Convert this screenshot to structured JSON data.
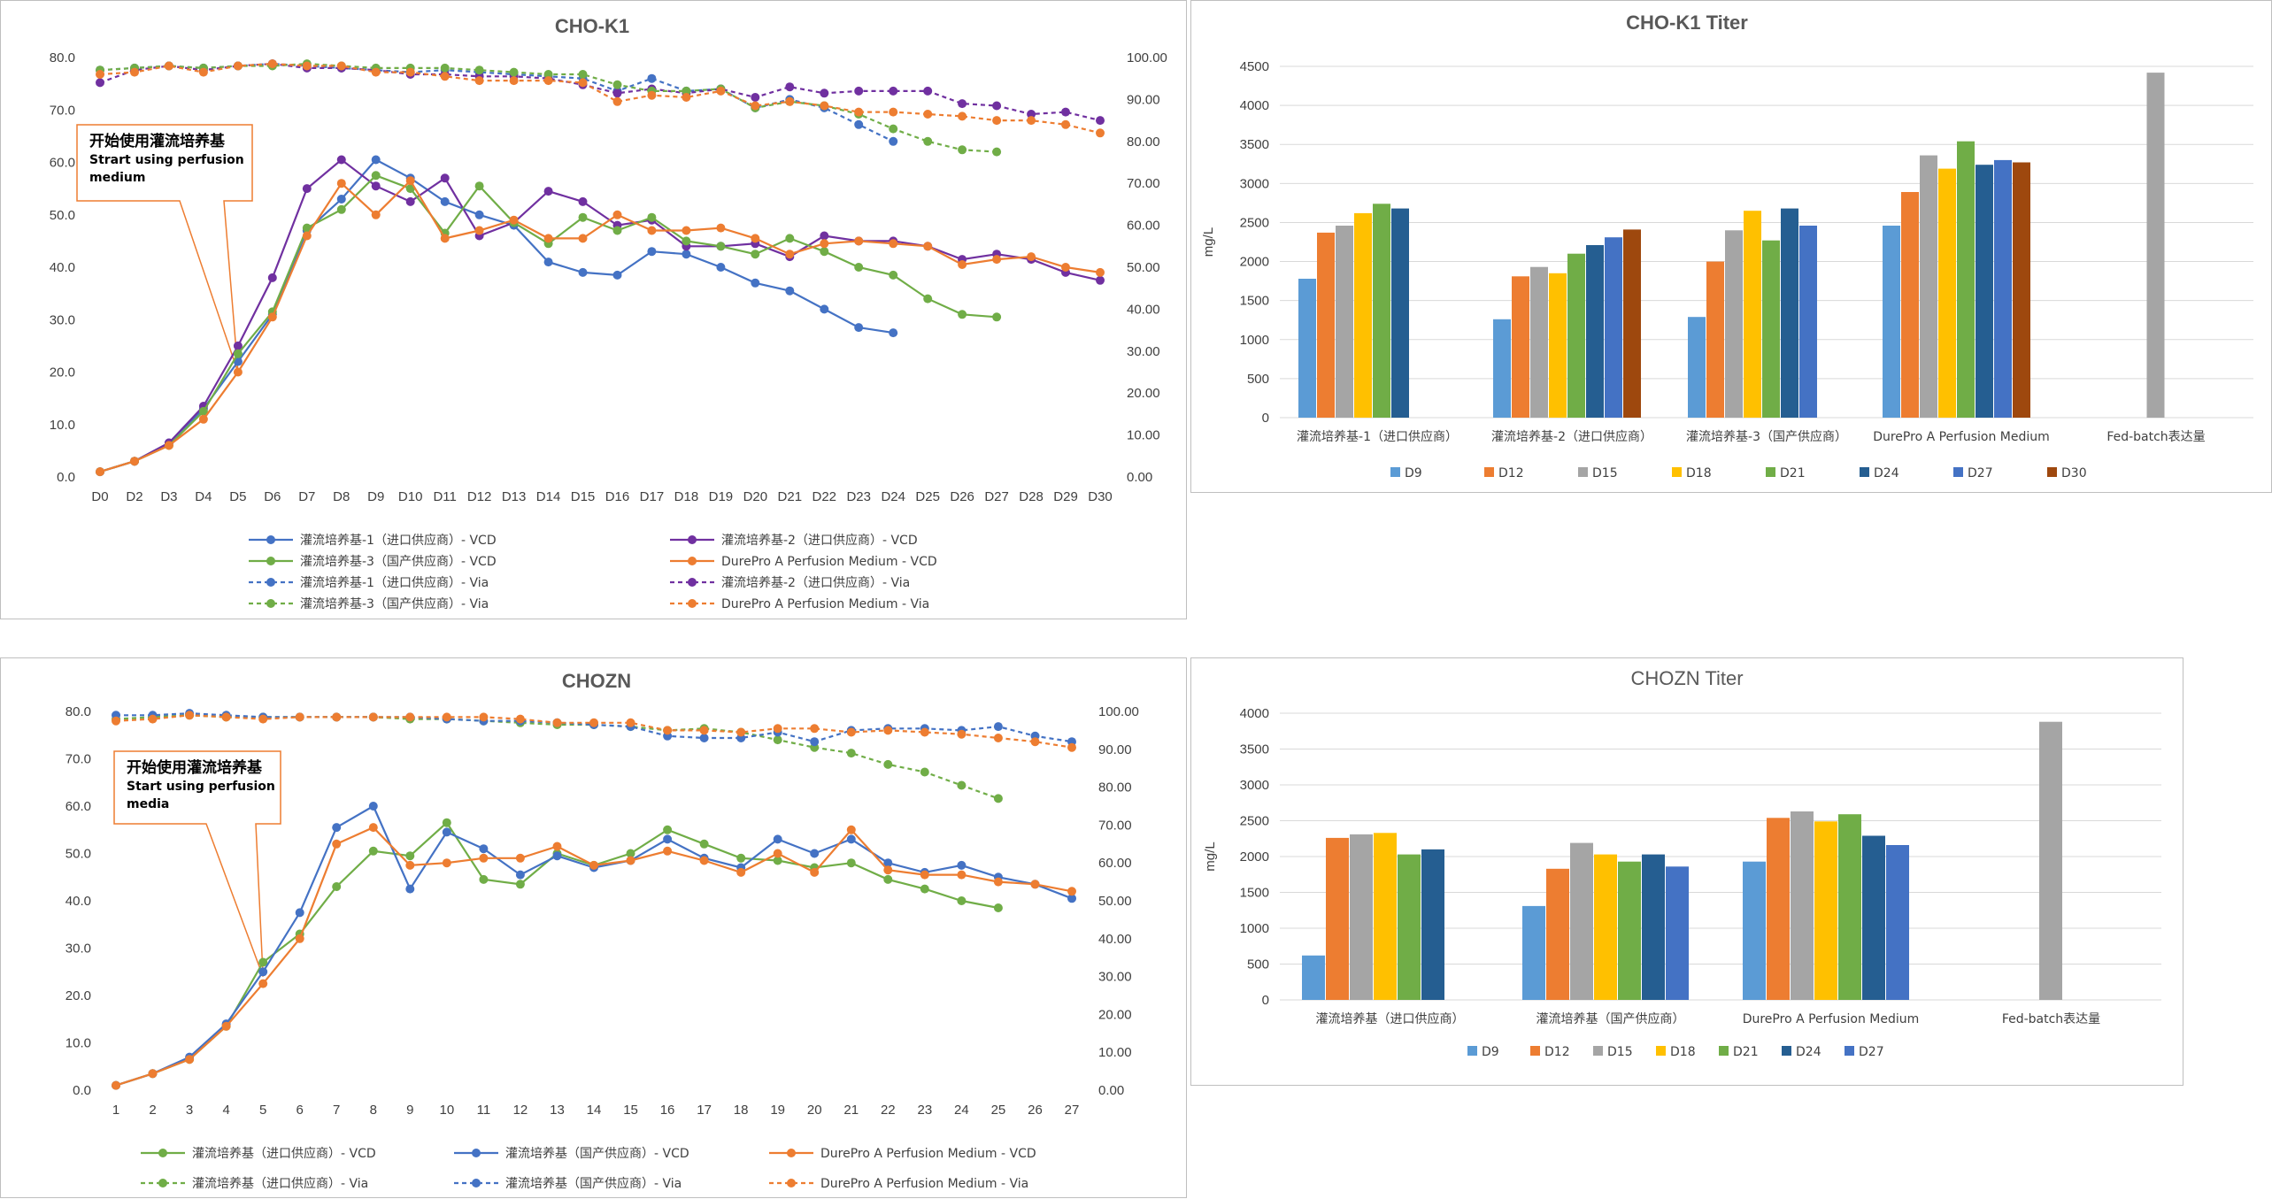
{
  "chart_data": [
    {
      "type": "line",
      "title": "CHO-K1",
      "x": [
        "D0",
        "D2",
        "D3",
        "D4",
        "D5",
        "D6",
        "D7",
        "D8",
        "D9",
        "D10",
        "D11",
        "D12",
        "D13",
        "D14",
        "D15",
        "D16",
        "D17",
        "D18",
        "D19",
        "D20",
        "D21",
        "D22",
        "D23",
        "D24",
        "D25",
        "D26",
        "D27",
        "D28",
        "D29",
        "D30"
      ],
      "ylim": [
        0,
        80
      ],
      "y_ticks": [
        "0.0",
        "10.0",
        "20.0",
        "30.0",
        "40.0",
        "50.0",
        "60.0",
        "70.0",
        "80.0"
      ],
      "y2lim": [
        0,
        100
      ],
      "y2_ticks": [
        "0.00",
        "10.00",
        "20.00",
        "30.00",
        "40.00",
        "50.00",
        "60.00",
        "70.00",
        "80.00",
        "90.00",
        "100.00"
      ],
      "annotation": [
        "开始使用灌流培养基",
        "Strart using perfusion",
        "medium"
      ],
      "annotation_x": "D5",
      "series": [
        {
          "name": "灌流培养基-1（进口供应商）- VCD",
          "color": "#4472c4",
          "axis": "left",
          "dashed": false,
          "values": [
            1.0,
            3.0,
            6.5,
            13.0,
            22.0,
            31.0,
            47.0,
            53.0,
            60.5,
            57.0,
            52.5,
            50.0,
            48.0,
            41.0,
            39.0,
            38.5,
            43.0,
            42.5,
            40.0,
            37.0,
            35.5,
            32.0,
            28.5,
            27.5,
            null,
            null,
            null,
            null,
            null,
            null
          ]
        },
        {
          "name": "灌流培养基-2（进口供应商）- VCD",
          "color": "#7030a0",
          "axis": "left",
          "dashed": false,
          "values": [
            1.0,
            3.0,
            6.5,
            13.5,
            25.0,
            38.0,
            55.0,
            60.5,
            55.5,
            52.5,
            57.0,
            46.0,
            48.5,
            54.5,
            52.5,
            48.0,
            49.0,
            44.0,
            44.0,
            44.5,
            42.0,
            46.0,
            45.0,
            45.0,
            44.0,
            41.5,
            42.5,
            41.5,
            39.0,
            37.5
          ]
        },
        {
          "name": "灌流培养基-3（国产供应商）- VCD",
          "color": "#70ad47",
          "axis": "left",
          "dashed": false,
          "values": [
            1.0,
            3.0,
            6.0,
            12.5,
            23.5,
            31.5,
            47.5,
            51.0,
            57.5,
            55.0,
            46.5,
            55.5,
            48.5,
            44.5,
            49.5,
            47.0,
            49.5,
            45.0,
            44.0,
            42.5,
            45.5,
            43.0,
            40.0,
            38.5,
            34.0,
            31.0,
            30.5,
            null,
            null,
            null
          ]
        },
        {
          "name": "DurePro A Perfusion Medium - VCD",
          "color": "#ed7d31",
          "axis": "left",
          "dashed": false,
          "values": [
            1.0,
            3.0,
            6.0,
            11.0,
            20.0,
            30.5,
            46.0,
            56.0,
            50.0,
            56.5,
            45.5,
            47.0,
            49.0,
            45.5,
            45.5,
            50.0,
            47.0,
            47.0,
            47.5,
            45.5,
            42.5,
            44.5,
            45.0,
            44.5,
            44.0,
            40.5,
            41.5,
            42.0,
            40.0,
            39.0
          ]
        },
        {
          "name": "灌流培养基-1（进口供应商）- Via",
          "color": "#4472c4",
          "axis": "right",
          "dashed": true,
          "values": [
            97.0,
            97.5,
            98.0,
            97.5,
            98.0,
            98.5,
            98.0,
            97.5,
            97.0,
            96.5,
            97.0,
            96.5,
            96.0,
            95.5,
            95.0,
            92.0,
            95.0,
            92.0,
            92.5,
            88.0,
            90.0,
            88.0,
            84.0,
            80.0,
            null,
            null,
            null,
            null,
            null,
            null
          ]
        },
        {
          "name": "灌流培养基-2（进口供应商）- Via",
          "color": "#7030a0",
          "axis": "right",
          "dashed": true,
          "values": [
            94.0,
            97.0,
            98.0,
            97.0,
            98.0,
            98.5,
            97.5,
            97.5,
            97.0,
            96.0,
            96.0,
            95.5,
            95.5,
            95.0,
            93.5,
            91.5,
            92.5,
            91.5,
            92.5,
            90.5,
            93.0,
            91.5,
            92.0,
            92.0,
            92.0,
            89.0,
            88.5,
            86.5,
            87.0,
            85.0
          ]
        },
        {
          "name": "灌流培养基-3（国产供应商）- Via",
          "color": "#70ad47",
          "axis": "right",
          "dashed": true,
          "values": [
            97.0,
            97.5,
            98.0,
            97.5,
            98.0,
            98.0,
            98.5,
            98.0,
            97.5,
            97.5,
            97.5,
            97.0,
            96.5,
            96.0,
            96.0,
            93.5,
            92.0,
            92.0,
            92.5,
            88.0,
            89.5,
            88.5,
            86.5,
            83.0,
            80.0,
            78.0,
            77.5,
            null,
            null,
            null
          ]
        },
        {
          "name": "DurePro A Perfusion Medium - Via",
          "color": "#ed7d31",
          "axis": "right",
          "dashed": true,
          "values": [
            96.0,
            96.5,
            98.0,
            96.5,
            98.0,
            98.5,
            98.0,
            98.0,
            96.5,
            96.5,
            95.5,
            94.5,
            94.5,
            94.5,
            94.0,
            89.5,
            91.0,
            90.5,
            92.0,
            88.5,
            89.5,
            88.5,
            87.0,
            87.0,
            86.5,
            86.0,
            85.0,
            85.0,
            84.0,
            82.0
          ]
        }
      ],
      "legend": {
        "left": [
          "灌流培养基-1（进口供应商）- VCD",
          "灌流培养基-3（国产供应商）- VCD",
          "灌流培养基-1（进口供应商）- Via",
          "灌流培养基-3（国产供应商）- Via"
        ],
        "right": [
          "灌流培养基-2（进口供应商）- VCD",
          "DurePro A Perfusion Medium - VCD",
          "灌流培养基-2（进口供应商）- Via",
          "DurePro A Perfusion Medium - Via"
        ]
      }
    },
    {
      "type": "bar",
      "title": "CHO-K1 Titer",
      "ylabel": "mg/L",
      "ylim": [
        0,
        4500
      ],
      "y_ticks": [
        "0",
        "500",
        "1000",
        "1500",
        "2000",
        "2500",
        "3000",
        "3500",
        "4000",
        "4500"
      ],
      "categories": [
        "灌流培养基-1（进口供应商）",
        "灌流培养基-2（进口供应商）",
        "灌流培养基-3（国产供应商）",
        "DurePro A Perfusion Medium",
        "Fed-batch表达量"
      ],
      "series": [
        {
          "name": "D9",
          "color": "#5b9bd5",
          "values": [
            1780,
            1260,
            1290,
            2460,
            null
          ]
        },
        {
          "name": "D12",
          "color": "#ed7d31",
          "values": [
            2370,
            1810,
            2000,
            2890,
            null
          ]
        },
        {
          "name": "D15",
          "color": "#a5a5a5",
          "values": [
            2460,
            1930,
            2400,
            3360,
            4420
          ]
        },
        {
          "name": "D18",
          "color": "#ffc000",
          "values": [
            2620,
            1850,
            2650,
            3190,
            null
          ]
        },
        {
          "name": "D21",
          "color": "#70ad47",
          "values": [
            2740,
            2100,
            2270,
            3540,
            null
          ]
        },
        {
          "name": "D24",
          "color": "#255e91",
          "values": [
            2680,
            2210,
            2680,
            3240,
            null
          ]
        },
        {
          "name": "D27",
          "color": "#4472c4",
          "values": [
            null,
            2310,
            2460,
            3300,
            null
          ]
        },
        {
          "name": "D30",
          "color": "#9e480e",
          "values": [
            null,
            2410,
            null,
            3270,
            null
          ]
        }
      ]
    },
    {
      "type": "line",
      "title": "CHOZN",
      "x": [
        "1",
        "2",
        "3",
        "4",
        "5",
        "6",
        "7",
        "8",
        "9",
        "10",
        "11",
        "12",
        "13",
        "14",
        "15",
        "16",
        "17",
        "18",
        "19",
        "20",
        "21",
        "22",
        "23",
        "24",
        "25",
        "26",
        "27"
      ],
      "ylim": [
        0,
        80
      ],
      "y_ticks": [
        "0.0",
        "10.0",
        "20.0",
        "30.0",
        "40.0",
        "50.0",
        "60.0",
        "70.0",
        "80.0"
      ],
      "y2lim": [
        0,
        100
      ],
      "y2_ticks": [
        "0.00",
        "10.00",
        "20.00",
        "30.00",
        "40.00",
        "50.00",
        "60.00",
        "70.00",
        "80.00",
        "90.00",
        "100.00"
      ],
      "annotation": [
        "开始使用灌流培养基",
        "Start using perfusion",
        "media"
      ],
      "annotation_x": "5",
      "series": [
        {
          "name": "灌流培养基（进口供应商）- VCD",
          "color": "#70ad47",
          "axis": "left",
          "dashed": false,
          "values": [
            1.0,
            3.5,
            6.5,
            13.5,
            27.0,
            33.0,
            43.0,
            50.5,
            49.5,
            56.5,
            44.5,
            43.5,
            50.0,
            47.5,
            50.0,
            55.0,
            52.0,
            49.0,
            48.5,
            47.0,
            48.0,
            44.5,
            42.5,
            40.0,
            38.5,
            null,
            null
          ]
        },
        {
          "name": "灌流培养基（国产供应商）- VCD",
          "color": "#4472c4",
          "axis": "left",
          "dashed": false,
          "values": [
            1.0,
            3.5,
            7.0,
            14.0,
            25.0,
            37.5,
            55.5,
            60.0,
            42.5,
            54.5,
            51.0,
            45.5,
            49.5,
            47.0,
            48.5,
            53.0,
            49.0,
            47.0,
            53.0,
            50.0,
            53.0,
            48.0,
            46.0,
            47.5,
            45.0,
            43.5,
            40.5
          ]
        },
        {
          "name": "DurePro A Perfusion Medium - VCD",
          "color": "#ed7d31",
          "axis": "left",
          "dashed": false,
          "values": [
            1.0,
            3.5,
            6.5,
            13.5,
            22.5,
            32.0,
            52.0,
            55.5,
            47.5,
            48.0,
            49.0,
            49.0,
            51.5,
            47.5,
            48.5,
            50.5,
            48.5,
            46.0,
            50.0,
            46.0,
            55.0,
            46.5,
            45.5,
            45.5,
            44.0,
            43.5,
            42.0
          ]
        },
        {
          "name": "灌流培养基（进口供应商）- Via",
          "color": "#70ad47",
          "axis": "right",
          "dashed": true,
          "values": [
            98.0,
            98.5,
            99.0,
            98.5,
            98.5,
            98.5,
            98.5,
            98.5,
            98.0,
            98.0,
            97.5,
            97.0,
            96.5,
            96.5,
            96.0,
            95.0,
            95.5,
            94.5,
            92.5,
            90.5,
            89.0,
            86.0,
            84.0,
            80.5,
            77.0,
            null,
            null
          ]
        },
        {
          "name": "灌流培养基（国产供应商）- Via",
          "color": "#4472c4",
          "axis": "right",
          "dashed": true,
          "values": [
            99.0,
            99.0,
            99.5,
            99.0,
            98.5,
            98.5,
            98.5,
            98.5,
            98.5,
            98.0,
            97.5,
            97.5,
            97.0,
            96.5,
            96.0,
            93.5,
            93.0,
            93.0,
            94.5,
            92.0,
            95.0,
            95.5,
            95.5,
            95.0,
            96.0,
            93.5,
            92.0
          ]
        },
        {
          "name": "DurePro A Perfusion Medium - Via",
          "color": "#ed7d31",
          "axis": "right",
          "dashed": true,
          "values": [
            97.5,
            98.0,
            99.0,
            98.5,
            98.0,
            98.5,
            98.5,
            98.5,
            98.5,
            98.5,
            98.5,
            98.0,
            97.0,
            97.0,
            97.0,
            95.0,
            95.0,
            94.5,
            95.5,
            95.5,
            94.5,
            95.0,
            94.5,
            94.0,
            93.0,
            92.0,
            90.5
          ]
        }
      ],
      "legend": [
        [
          "灌流培养基（进口供应商）- VCD",
          "灌流培养基（国产供应商）- VCD",
          "DurePro A Perfusion Medium - VCD"
        ],
        [
          "灌流培养基（进口供应商）- Via",
          "灌流培养基（国产供应商）- Via",
          "DurePro A Perfusion Medium - Via"
        ]
      ]
    },
    {
      "type": "bar",
      "title": "CHOZN Titer",
      "ylabel": "mg/L",
      "ylim": [
        0,
        4000
      ],
      "y_ticks": [
        "0",
        "500",
        "1000",
        "1500",
        "2000",
        "2500",
        "3000",
        "3500",
        "4000"
      ],
      "categories": [
        "灌流培养基（进口供应商）",
        "灌流培养基（国产供应商）",
        "DurePro A Perfusion Medium",
        "Fed-batch表达量"
      ],
      "series": [
        {
          "name": "D9",
          "color": "#5b9bd5",
          "values": [
            620,
            1310,
            1930,
            null
          ]
        },
        {
          "name": "D12",
          "color": "#ed7d31",
          "values": [
            2260,
            1830,
            2540,
            null
          ]
        },
        {
          "name": "D15",
          "color": "#a5a5a5",
          "values": [
            2310,
            2190,
            2630,
            3880
          ]
        },
        {
          "name": "D18",
          "color": "#ffc000",
          "values": [
            2330,
            2030,
            2490,
            null
          ]
        },
        {
          "name": "D21",
          "color": "#70ad47",
          "values": [
            2030,
            1930,
            2590,
            null
          ]
        },
        {
          "name": "D24",
          "color": "#255e91",
          "values": [
            2100,
            2030,
            2290,
            null
          ]
        },
        {
          "name": "D27",
          "color": "#4472c4",
          "values": [
            null,
            1860,
            2160,
            null
          ]
        }
      ]
    }
  ]
}
